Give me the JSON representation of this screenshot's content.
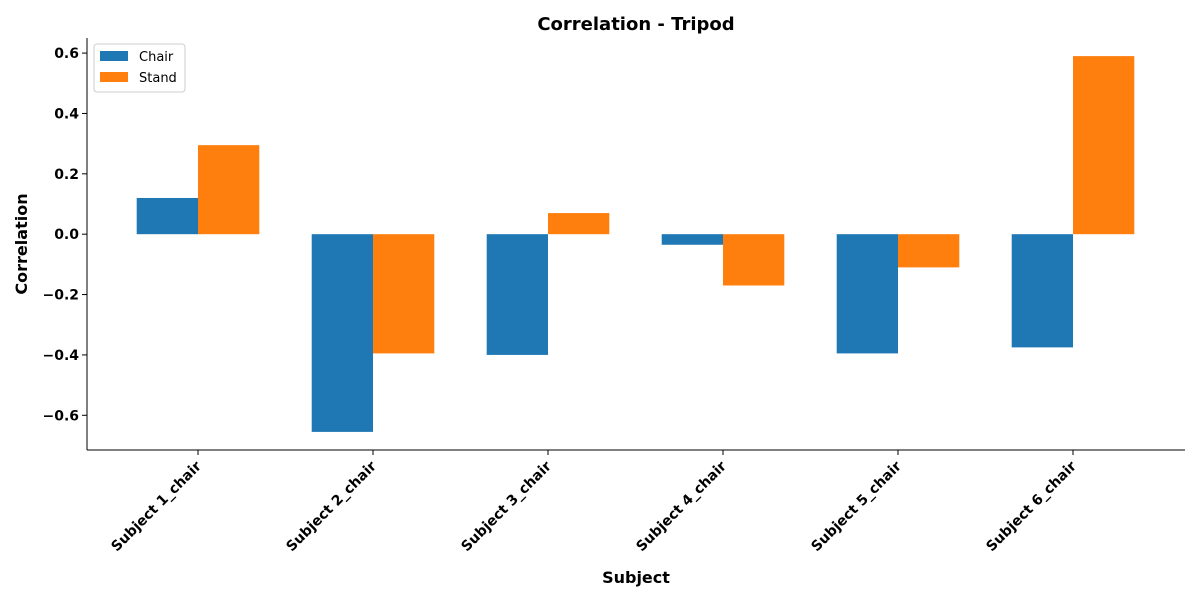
{
  "chart_data": {
    "type": "bar",
    "title": "Correlation - Tripod",
    "xlabel": "Subject",
    "ylabel": "Correlation",
    "categories": [
      "Subject 1_chair",
      "Subject 2_chair",
      "Subject 3_chair",
      "Subject 4_chair",
      "Subject 5_chair",
      "Subject 6_chair"
    ],
    "series": [
      {
        "name": "Chair",
        "color": "#1f77b4",
        "values": [
          0.12,
          -0.655,
          -0.4,
          -0.035,
          -0.395,
          -0.375
        ]
      },
      {
        "name": "Stand",
        "color": "#ff7f0e",
        "values": [
          0.295,
          -0.395,
          0.07,
          -0.17,
          -0.11,
          0.59
        ]
      }
    ],
    "ylim": [
      -0.715,
      0.65
    ],
    "yticks": [
      -0.6,
      -0.4,
      -0.2,
      0.0,
      0.2,
      0.4,
      0.6
    ],
    "ytick_labels": [
      "−0.6",
      "−0.4",
      "−0.2",
      "0.0",
      "0.2",
      "0.4",
      "0.6"
    ],
    "grid": false,
    "legend_position": "top-left"
  }
}
